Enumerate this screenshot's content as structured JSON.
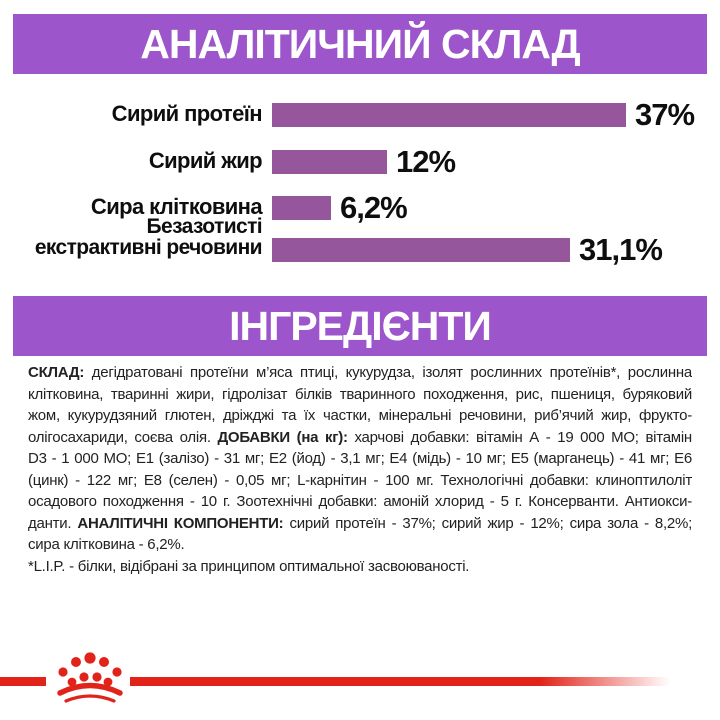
{
  "colors": {
    "header_purple": "#9C55CA",
    "bar_purple": "#96569B",
    "brand_red": "#E2231A",
    "text_dark": "#222222"
  },
  "sections": {
    "analytical": {
      "title": "АНАЛІТИЧНИЙ СКЛАД"
    },
    "ingredients": {
      "title": "ІНГРЕДІЄНТИ"
    }
  },
  "chart_data": {
    "type": "bar",
    "orientation": "horizontal",
    "title": "АНАЛІТИЧНИЙ СКЛАД",
    "categories": [
      "Сирий протеїн",
      "Сирий жир",
      "Сира клітковина",
      "Безазотисті екстрактивні речовини"
    ],
    "category_display": [
      [
        "Сирий протеїн"
      ],
      [
        "Сирий жир"
      ],
      [
        "Сира клітковина"
      ],
      [
        "Безазотисті",
        "екстрактивні речовини"
      ]
    ],
    "values": [
      37,
      12,
      6.2,
      31.1
    ],
    "value_labels": [
      "37%",
      "12%",
      "6,2%",
      "31,1%"
    ],
    "xlim": [
      0,
      40
    ],
    "grid": false,
    "legend": false,
    "bar_color": "#96569B"
  },
  "ingredients": {
    "lines": [
      {
        "justify": true,
        "segments": [
          {
            "text": "СКЛАД:",
            "bold": true
          },
          {
            "text": " дегідратовані протеїни м’яса птиці, кукурудза, ізолят рослинних протеїнів*, рослинна",
            "bold": false
          }
        ]
      },
      {
        "justify": true,
        "segments": [
          {
            "text": "клітковина, тваринні жири, гідролізат білків тваринного походження, рис, пшениця, буряковий",
            "bold": false
          }
        ]
      },
      {
        "justify": true,
        "segments": [
          {
            "text": "жом, кукурудзяний глютен, дріжджі та їх частки, мінеральні речовини, риб’ячий жир, фрукто-",
            "bold": false
          }
        ]
      },
      {
        "justify": true,
        "segments": [
          {
            "text": "олігосахариди, соєва олія. ",
            "bold": false
          },
          {
            "text": "ДОБАВКИ (на кг):",
            "bold": true
          },
          {
            "text": " харчові добавки: вітамін А - 19 000 МО; вітамін",
            "bold": false
          }
        ]
      },
      {
        "justify": true,
        "segments": [
          {
            "text": "D3 - 1 000 МО; Е1 (залізо) - 31 мг; Е2 (йод) - 3,1 мг; Е4 (мідь) - 10 мг; Е5 (марганець) - 41 мг; Е6",
            "bold": false
          }
        ]
      },
      {
        "justify": true,
        "segments": [
          {
            "text": "(цинк) - 122 мг; Е8 (селен) - 0,05 мг; L-карнітин - 100 мг. Технологічні добавки: клиноптилоліт",
            "bold": false
          }
        ]
      },
      {
        "justify": true,
        "segments": [
          {
            "text": "осадового походження - 10 г. Зоотехнічні добавки: амоній хлорид - 5 г. Консерванти. Антиокси-",
            "bold": false
          }
        ]
      },
      {
        "justify": true,
        "segments": [
          {
            "text": "данти. ",
            "bold": false
          },
          {
            "text": "АНАЛІТИЧНІ КОМПОНЕНТИ:",
            "bold": true
          },
          {
            "text": " сирий протеїн - 37%; сирий жир - 12%; сира зола - 8,2%;",
            "bold": false
          }
        ]
      },
      {
        "justify": false,
        "segments": [
          {
            "text": "сира клітковина - 6,2%.",
            "bold": false
          }
        ]
      },
      {
        "justify": false,
        "name": "lip-footnote",
        "segments": [
          {
            "text": "*L.I.P. - білки, відібрані за принципом оптимальної засвоюваності.",
            "bold": false
          }
        ]
      }
    ]
  },
  "footer": {
    "logo_icon": "royal-canin-crown-icon"
  }
}
